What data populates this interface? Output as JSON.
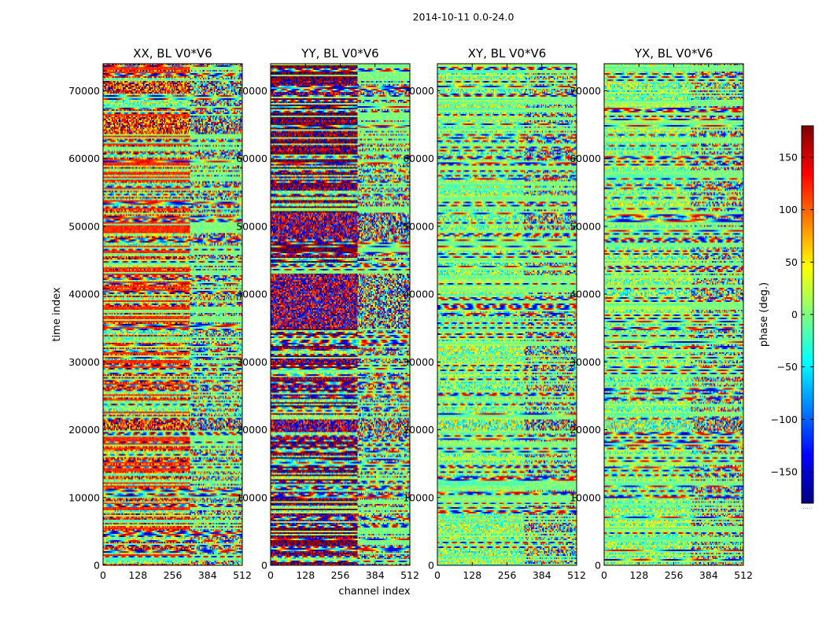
{
  "chart_data": {
    "type": "heatmap",
    "suptitle": "2014-10-11 0.0-24.0",
    "xlabel": "channel index",
    "ylabel": "time index",
    "colorbar": {
      "label": "phase (deg.)",
      "range": [
        -180,
        180
      ],
      "ticks": [
        -150,
        -100,
        -50,
        0,
        50,
        100,
        150
      ],
      "tick_labels": [
        "−150",
        "−100",
        "−50",
        "0",
        "50",
        "100",
        "150"
      ],
      "colormap": "jet",
      "below_mark": "....."
    },
    "xlim": [
      0,
      512
    ],
    "ylim": [
      0,
      74000
    ],
    "xticks": [
      0,
      128,
      256,
      384,
      512
    ],
    "xtick_labels": [
      "0",
      "128",
      "256",
      "384",
      "512"
    ],
    "yticks": [
      0,
      10000,
      20000,
      30000,
      40000,
      50000,
      60000,
      70000
    ],
    "ytick_labels": [
      "0",
      "10000",
      "20000",
      "30000",
      "40000",
      "50000",
      "60000",
      "70000"
    ],
    "panels": [
      {
        "title": "XX, BL V0*V6",
        "key": "XX",
        "bias_phase": 120,
        "bias_strength": 0.55,
        "structure_break_channel": 320,
        "rfi_bands": [
          [
            20000,
            21500
          ],
          [
            63500,
            66000
          ],
          [
            70000,
            71500
          ]
        ]
      },
      {
        "title": "YY, BL V0*V6",
        "key": "YY",
        "bias_phase": 175,
        "bias_strength": 0.6,
        "structure_break_channel": 320,
        "rfi_bands": [
          [
            20000,
            21500
          ],
          [
            35000,
            43000
          ],
          [
            48000,
            52000
          ]
        ]
      },
      {
        "title": "XY, BL V0*V6",
        "key": "XY",
        "bias_phase": 0,
        "bias_strength": 0.05,
        "structure_break_channel": 320,
        "rfi_bands": [
          [
            20000,
            21500
          ]
        ]
      },
      {
        "title": "YX, BL V0*V6",
        "key": "YX",
        "bias_phase": 0,
        "bias_strength": 0.05,
        "structure_break_channel": 320,
        "rfi_bands": [
          [
            20000,
            21500
          ]
        ]
      }
    ]
  }
}
